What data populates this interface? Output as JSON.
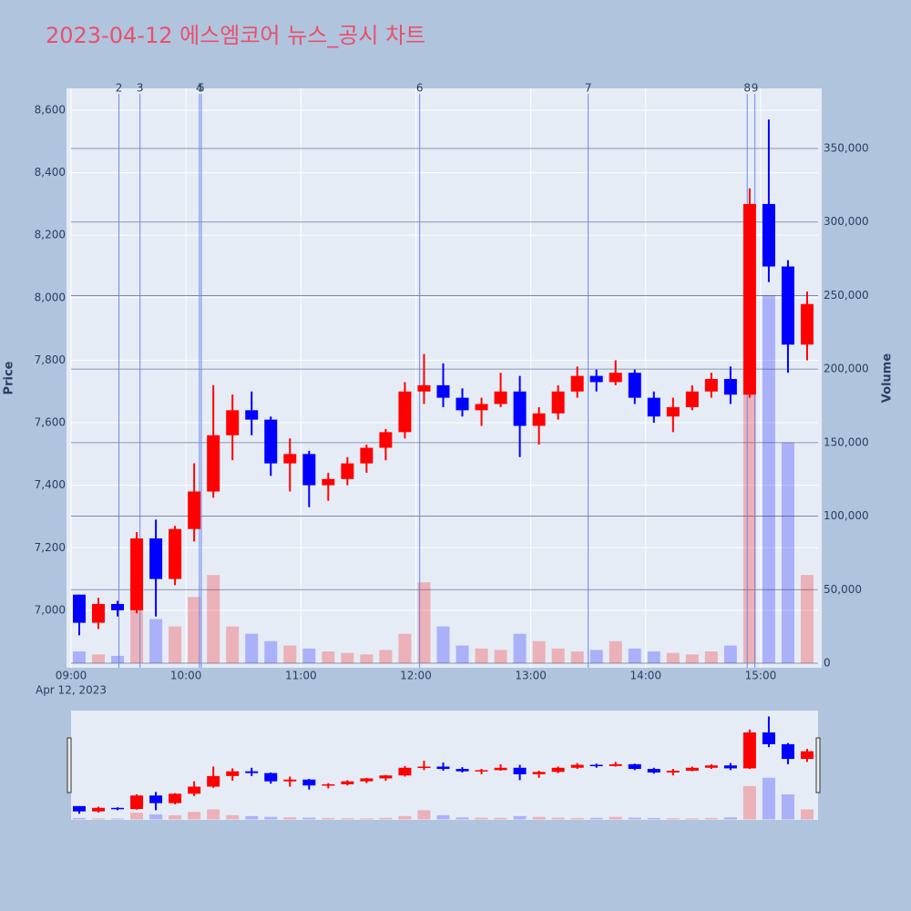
{
  "chart_data": {
    "type": "candlestick",
    "title": "2023-04-12 에스엠코어 뉴스_공시 차트",
    "y_title": "Price",
    "y2_title": "Volume",
    "x_date_label": "Apr 12, 2023",
    "xlim": [
      "09:00",
      "15:30"
    ],
    "xticks": [
      "09:00",
      "10:00",
      "11:00",
      "12:00",
      "13:00",
      "14:00",
      "15:00"
    ],
    "ylim": [
      6816,
      8670
    ],
    "yticks": [
      {
        "value": 7000,
        "label": "7,000"
      },
      {
        "value": 7200,
        "label": "7,200"
      },
      {
        "value": 7400,
        "label": "7,400"
      },
      {
        "value": 7600,
        "label": "7,600"
      },
      {
        "value": 7800,
        "label": "7,800"
      },
      {
        "value": 8000,
        "label": "8,000"
      },
      {
        "value": 8200,
        "label": "8,200"
      },
      {
        "value": 8400,
        "label": "8,400"
      },
      {
        "value": 8600,
        "label": "8,600"
      }
    ],
    "y2lim": [
      -3100,
      390900
    ],
    "y2ticks": [
      0,
      {
        "value": 50000,
        "label": "50,000"
      },
      {
        "value": 100000,
        "label": "100,000"
      },
      {
        "value": 150000,
        "label": "150,000"
      },
      {
        "value": 200000,
        "label": "200,000"
      },
      {
        "value": 250000,
        "label": "250,000"
      },
      {
        "value": 300000,
        "label": "300,000"
      },
      {
        "value": 350000,
        "label": "350,000"
      }
    ],
    "up_color": "#ff0000",
    "down_color": "#0000ff",
    "x": [
      "09:00",
      "09:10",
      "09:20",
      "09:30",
      "09:40",
      "09:50",
      "10:00",
      "10:10",
      "10:20",
      "10:30",
      "10:40",
      "10:50",
      "11:00",
      "11:10",
      "11:20",
      "11:30",
      "11:40",
      "11:50",
      "12:00",
      "12:10",
      "12:20",
      "12:30",
      "12:40",
      "12:50",
      "13:00",
      "13:10",
      "13:20",
      "13:30",
      "13:40",
      "13:50",
      "14:00",
      "14:10",
      "14:20",
      "14:30",
      "14:40",
      "14:50",
      "15:00",
      "15:10",
      "15:20"
    ],
    "open": [
      7050,
      6960,
      7020,
      7000,
      7230,
      7100,
      7260,
      7380,
      7560,
      7640,
      7610,
      7470,
      7500,
      7400,
      7420,
      7470,
      7520,
      7570,
      7700,
      7720,
      7680,
      7640,
      7660,
      7700,
      7590,
      7630,
      7700,
      7750,
      7730,
      7760,
      7680,
      7620,
      7650,
      7700,
      7740,
      7690,
      8300,
      8100,
      7850
    ],
    "high": [
      7050,
      7040,
      7030,
      7250,
      7290,
      7270,
      7470,
      7720,
      7690,
      7700,
      7620,
      7550,
      7510,
      7440,
      7490,
      7530,
      7580,
      7730,
      7820,
      7790,
      7710,
      7680,
      7760,
      7750,
      7650,
      7720,
      7780,
      7770,
      7800,
      7770,
      7700,
      7680,
      7720,
      7760,
      7780,
      8350,
      8570,
      8120,
      8020
    ],
    "low": [
      6920,
      6940,
      6980,
      6990,
      6980,
      7080,
      7220,
      7360,
      7480,
      7560,
      7430,
      7380,
      7330,
      7350,
      7400,
      7440,
      7480,
      7550,
      7660,
      7650,
      7620,
      7590,
      7650,
      7490,
      7530,
      7610,
      7680,
      7700,
      7720,
      7660,
      7600,
      7570,
      7640,
      7680,
      7660,
      7680,
      8050,
      7760,
      7800
    ],
    "close": [
      6960,
      7020,
      7000,
      7230,
      7100,
      7260,
      7380,
      7560,
      7640,
      7610,
      7470,
      7500,
      7400,
      7420,
      7470,
      7520,
      7570,
      7700,
      7720,
      7680,
      7640,
      7660,
      7700,
      7590,
      7630,
      7700,
      7750,
      7730,
      7760,
      7680,
      7620,
      7650,
      7700,
      7740,
      7690,
      8300,
      8100,
      7850,
      7980
    ],
    "volume": [
      8000,
      6000,
      5000,
      40000,
      30000,
      25000,
      45000,
      60000,
      25000,
      20000,
      15000,
      12000,
      10000,
      8000,
      7000,
      6000,
      9000,
      20000,
      55000,
      25000,
      12000,
      10000,
      9000,
      20000,
      15000,
      10000,
      8000,
      9000,
      15000,
      10000,
      8000,
      7000,
      6000,
      8000,
      12000,
      200000,
      250000,
      150000,
      60000
    ],
    "news": [
      {
        "label": "2",
        "x": "09:25"
      },
      {
        "label": "3",
        "x": "09:36"
      },
      {
        "label": "4",
        "x": "10:07"
      },
      {
        "label": "5",
        "x": "10:08"
      },
      {
        "label": "6",
        "x": "12:02"
      },
      {
        "label": "7",
        "x": "13:30"
      },
      {
        "label": "8",
        "x": "14:53"
      },
      {
        "label": "9",
        "x": "14:57"
      }
    ]
  }
}
